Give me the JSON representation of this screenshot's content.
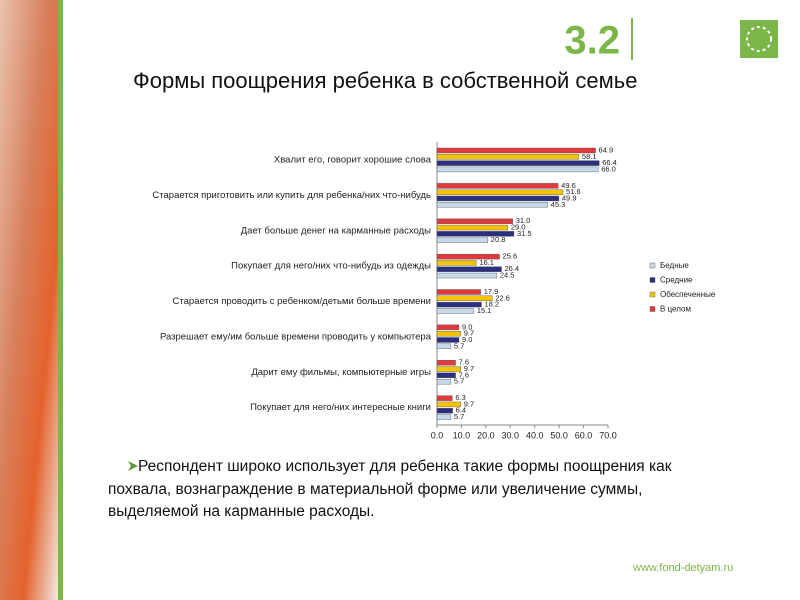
{
  "chart_data": {
    "type": "hbar",
    "slide_number": "3.2",
    "title": "Формы поощрения ребенка в собственной семье",
    "note": "Респондент широко использует для ребенка такие формы поощрения как похвала, вознаграждение в материальной форме или увеличение суммы, выделяемой на карманные расходы.",
    "footer": "www.fond-detyam.ru",
    "categories": [
      "Хвалит его, говорит хорошие слова",
      "Старается приготовить или купить для ребенка/них что-нибудь",
      "Дает больше денег на карманные расходы",
      "Покупает для него/них что-нибудь из одежды",
      "Старается проводить с ребенком/детьми больше времени",
      "Разрешает ему/им больше времени проводить у компьютера",
      "Дарит ему фильмы, компьютерные игры",
      "Покупает для него/них интересные книги"
    ],
    "series": [
      {
        "name": "В целом",
        "color": "#e0393e",
        "values": [
          64.9,
          49.6,
          31.0,
          25.6,
          17.9,
          9.0,
          7.6,
          6.3
        ],
        "value_labels": [
          "64.9",
          "49.6",
          "31.0",
          "25.6",
          "17.9",
          "9.0",
          "7.6",
          "6.3"
        ]
      },
      {
        "name": "Обеспеченные",
        "color": "#f5c400",
        "values": [
          58.1,
          51.6,
          29.0,
          16.1,
          22.6,
          9.7,
          9.7,
          9.7
        ],
        "value_labels": [
          "58.1",
          "51.6",
          "29.0",
          "16.1",
          "22.6",
          "9.7",
          "9.7",
          "9.7"
        ]
      },
      {
        "name": "Средние",
        "color": "#2b2f7f",
        "values": [
          66.4,
          49.9,
          31.5,
          26.4,
          18.2,
          9.0,
          7.6,
          6.4
        ],
        "value_labels": [
          "66.4",
          "49.9",
          "31.5",
          "26.4",
          "18.2",
          "9.0",
          "7.6",
          "6.4"
        ]
      },
      {
        "name": "Бедные",
        "color": "#c6d9e8",
        "values": [
          66.0,
          45.3,
          20.8,
          24.5,
          15.1,
          5.7,
          5.7,
          5.7
        ],
        "value_labels": [
          "66.0",
          "45.3",
          "20.8",
          "24.5",
          "15.1",
          "5.7",
          "5.7",
          "5.7"
        ]
      }
    ],
    "xlim": [
      0,
      70
    ],
    "xticks": [
      {
        "value": 0,
        "label": "0.0"
      },
      {
        "value": 10,
        "label": "10.0"
      },
      {
        "value": 20,
        "label": "20.0"
      },
      {
        "value": 30,
        "label": "30.0"
      },
      {
        "value": 40,
        "label": "40.0"
      },
      {
        "value": 50,
        "label": "50.0"
      },
      {
        "value": 60,
        "label": "60.0"
      },
      {
        "value": 70,
        "label": "70.0"
      }
    ],
    "legend": "right"
  }
}
